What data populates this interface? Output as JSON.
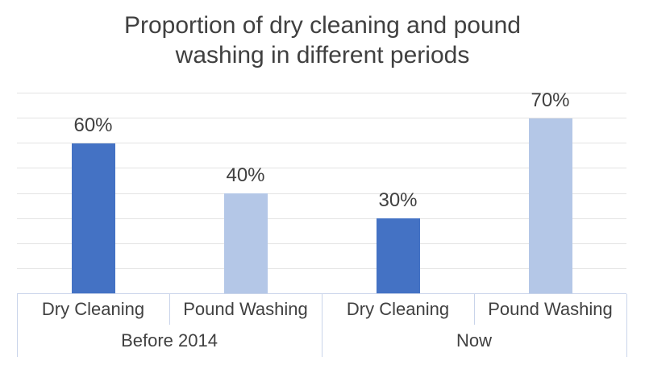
{
  "title": {
    "line1": "Proportion of dry cleaning and pound",
    "line2": "washing in different periods"
  },
  "colors": {
    "bar_dark_blue": "#4472c4",
    "bar_light_blue": "#b4c7e7",
    "text": "#404040",
    "gridline": "#e3e3e3",
    "axis_line": "#c9d4ea",
    "background": "#ffffff"
  },
  "chart_data": {
    "type": "bar",
    "title": "Proportion of dry cleaning and pound washing in different periods",
    "groups": [
      "Before 2014",
      "Now"
    ],
    "categories": [
      "Dry Cleaning",
      "Pound Washing",
      "Dry Cleaning",
      "Pound Washing"
    ],
    "points": [
      {
        "group": "Before 2014",
        "category": "Dry Cleaning",
        "value": 60,
        "label": "60%",
        "color": "#4472c4"
      },
      {
        "group": "Before 2014",
        "category": "Pound Washing",
        "value": 40,
        "label": "40%",
        "color": "#b4c7e7"
      },
      {
        "group": "Now",
        "category": "Dry Cleaning",
        "value": 30,
        "label": "30%",
        "color": "#4472c4"
      },
      {
        "group": "Now",
        "category": "Pound Washing",
        "value": 70,
        "label": "70%",
        "color": "#b4c7e7"
      }
    ],
    "xlabel": "",
    "ylabel": "",
    "ylim": [
      0,
      80
    ],
    "gridline_step": 10,
    "y_tick_labels_visible": false,
    "grid": true,
    "legend": "none",
    "data_labels_visible": true
  }
}
